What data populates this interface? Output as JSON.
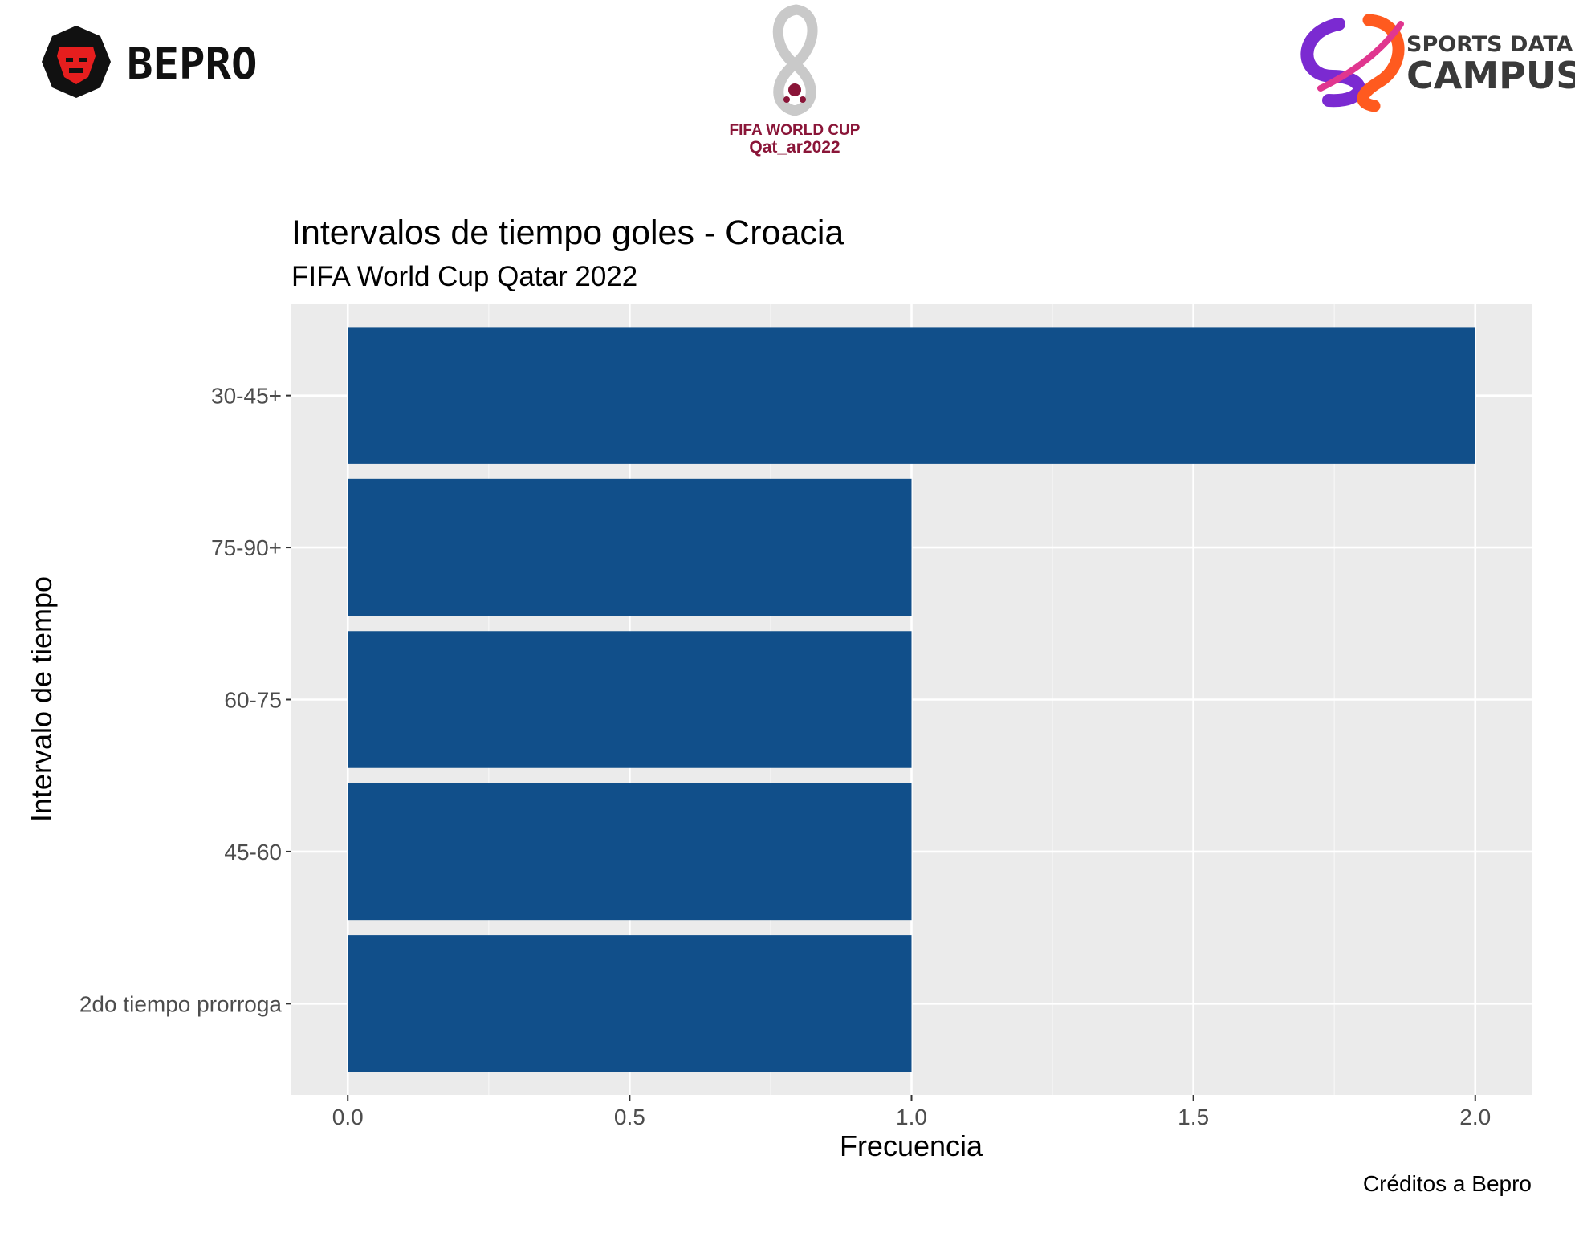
{
  "branding": {
    "bepro_text": "BEPRO",
    "worldcup_line1": "FIFA WORLD CUP",
    "worldcup_line2": "Qat_ar2022",
    "sdc_line1": "SPORTS DATA",
    "sdc_line2": "CAMPUS",
    "bepro_icon": "lion-head-icon",
    "worldcup_icon": "world-cup-trophy-icon",
    "sdc_icon": "sports-data-campus-swirl-icon"
  },
  "colors": {
    "bar": "#114f8a",
    "panel": "#ebebeb",
    "grid_major": "#ffffff",
    "grid_minor": "#f5f5f5",
    "tick_text": "#4d4d4d",
    "worldcup_red": "#8a1538",
    "sdc_text": "#3a3a3a"
  },
  "chart_data": {
    "type": "bar",
    "orientation": "horizontal",
    "title": "Intervalos de tiempo goles - Croacia",
    "subtitle": "FIFA World Cup Qatar 2022",
    "xlabel": "Frecuencia",
    "ylabel": "Intervalo de tiempo",
    "caption": "Créditos a Bepro",
    "categories": [
      "30-45+",
      "75-90+",
      "60-75",
      "45-60",
      "2do tiempo prorroga"
    ],
    "values": [
      2,
      1,
      1,
      1,
      1
    ],
    "xlim": [
      -0.1,
      2.1
    ],
    "xticks": [
      0,
      0.5,
      1,
      1.5,
      2
    ],
    "xtick_labels": [
      "0.0",
      "0.5",
      "1.0",
      "1.5",
      "2.0"
    ],
    "grid": true,
    "legend": "none"
  }
}
